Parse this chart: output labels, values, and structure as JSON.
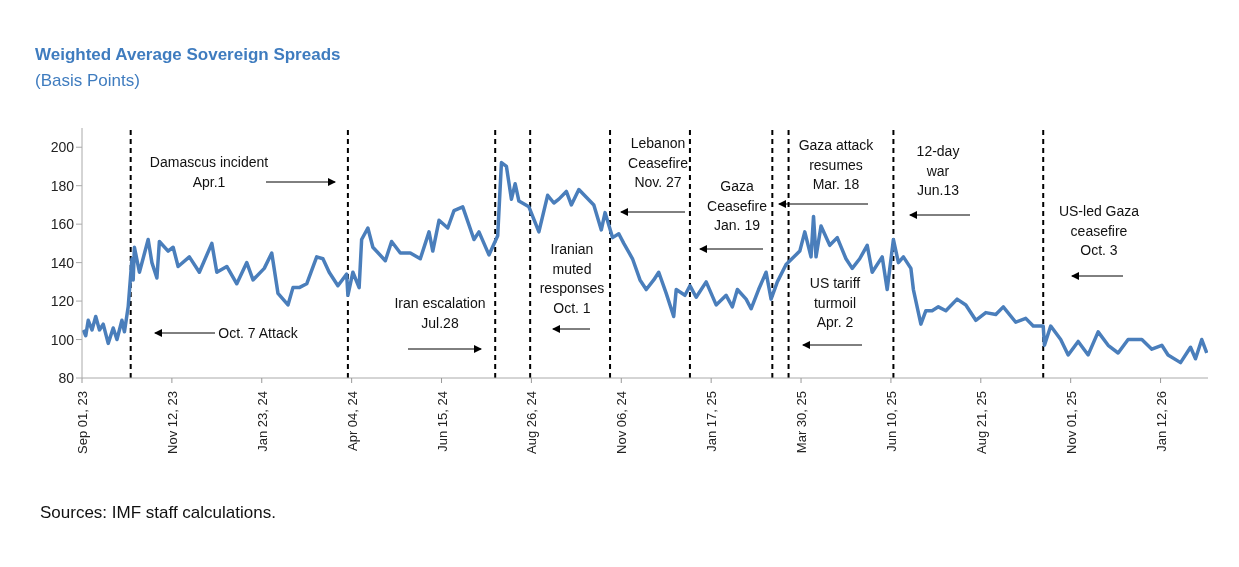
{
  "chart_data": {
    "type": "line",
    "title": "Weighted Average Sovereign Spreads",
    "subtitle": "(Basis Points)",
    "x": [
      "2023-09-02",
      "2023-09-04",
      "2023-09-06",
      "2023-09-09",
      "2023-09-12",
      "2023-09-15",
      "2023-09-18",
      "2023-09-22",
      "2023-09-26",
      "2023-09-29",
      "2023-10-03",
      "2023-10-05",
      "2023-10-08",
      "2023-10-11",
      "2023-10-12",
      "2023-10-13",
      "2023-10-17",
      "2023-10-24",
      "2023-10-27",
      "2023-10-31",
      "2023-11-02",
      "2023-11-09",
      "2023-11-13",
      "2023-11-17",
      "2023-11-26",
      "2023-12-04",
      "2023-12-14",
      "2023-12-18",
      "2023-12-26",
      "2024-01-03",
      "2024-01-11",
      "2024-01-16",
      "2024-01-25",
      "2024-01-31",
      "2024-02-05",
      "2024-02-13",
      "2024-02-17",
      "2024-02-22",
      "2024-02-28",
      "2024-03-07",
      "2024-03-12",
      "2024-03-17",
      "2024-03-24",
      "2024-03-31",
      "2024-04-01",
      "2024-04-05",
      "2024-04-10",
      "2024-04-12",
      "2024-04-17",
      "2024-04-21",
      "2024-05-01",
      "2024-05-06",
      "2024-05-13",
      "2024-05-21",
      "2024-05-29",
      "2024-06-05",
      "2024-06-08",
      "2024-06-13",
      "2024-06-20",
      "2024-06-25",
      "2024-07-02",
      "2024-07-11",
      "2024-07-15",
      "2024-07-23",
      "2024-07-30",
      "2024-08-02",
      "2024-08-06",
      "2024-08-10",
      "2024-08-13",
      "2024-08-16",
      "2024-08-24",
      "2024-09-01",
      "2024-09-08",
      "2024-09-13",
      "2024-09-17",
      "2024-09-23",
      "2024-09-27",
      "2024-10-03",
      "2024-10-09",
      "2024-10-15",
      "2024-10-21",
      "2024-10-24",
      "2024-10-30",
      "2024-11-04",
      "2024-11-08",
      "2024-11-15",
      "2024-11-21",
      "2024-11-26",
      "2024-12-02",
      "2024-12-06",
      "2024-12-12",
      "2024-12-18",
      "2024-12-20",
      "2024-12-27",
      "2024-12-31",
      "2025-01-05",
      "2025-01-13",
      "2025-01-21",
      "2025-01-29",
      "2025-02-03",
      "2025-02-07",
      "2025-02-14",
      "2025-02-18",
      "2025-02-24",
      "2025-03-02",
      "2025-03-06",
      "2025-03-11",
      "2025-03-18",
      "2025-03-29",
      "2025-04-02",
      "2025-04-07",
      "2025-04-09",
      "2025-04-11",
      "2025-04-15",
      "2025-04-22",
      "2025-04-28",
      "2025-05-05",
      "2025-05-10",
      "2025-05-16",
      "2025-05-22",
      "2025-05-26",
      "2025-06-03",
      "2025-06-07",
      "2025-06-12",
      "2025-06-16",
      "2025-06-20",
      "2025-06-26",
      "2025-06-28",
      "2025-07-04",
      "2025-07-08",
      "2025-07-13",
      "2025-07-18",
      "2025-07-24",
      "2025-08-02",
      "2025-08-09",
      "2025-08-17",
      "2025-08-25",
      "2025-09-02",
      "2025-09-08",
      "2025-09-18",
      "2025-09-26",
      "2025-10-02",
      "2025-10-10",
      "2025-10-11",
      "2025-10-16",
      "2025-10-24",
      "2025-10-30",
      "2025-11-07",
      "2025-11-15",
      "2025-11-23",
      "2025-12-01",
      "2025-12-09",
      "2025-12-17",
      "2025-12-28",
      "2026-01-05",
      "2026-01-13",
      "2026-01-18",
      "2026-01-28",
      "2026-02-05",
      "2026-02-09",
      "2026-02-14",
      "2026-02-18"
    ],
    "series": [
      {
        "color": "#4a7ebb",
        "values": [
          105,
          102,
          110,
          105,
          112,
          105,
          108,
          98,
          106,
          100,
          110,
          104,
          117,
          142,
          131,
          148,
          135,
          152,
          140,
          132,
          151,
          146,
          148,
          138,
          143,
          135,
          150,
          135,
          138,
          129,
          140,
          131,
          137,
          145,
          124,
          118,
          127,
          127,
          129,
          143,
          142,
          135,
          128,
          134,
          123,
          135,
          127,
          152,
          158,
          148,
          141,
          151,
          145,
          145,
          142,
          156,
          146,
          162,
          158,
          167,
          169,
          152,
          156,
          144,
          154,
          192,
          190,
          173,
          181,
          172,
          169,
          156,
          175,
          171,
          173,
          177,
          170,
          178,
          174,
          170,
          157,
          166,
          153,
          155,
          150,
          142,
          131,
          126,
          131,
          135,
          124,
          112,
          126,
          123,
          128,
          122,
          130,
          118,
          123,
          117,
          126,
          121,
          116,
          126,
          135,
          121,
          130,
          139,
          146,
          156,
          143,
          164,
          143,
          159,
          149,
          153,
          142,
          137,
          142,
          149,
          135,
          143,
          126,
          152,
          140,
          143,
          137,
          126,
          108,
          115,
          115,
          117,
          115,
          121,
          118,
          110,
          114,
          113,
          117,
          109,
          111,
          107,
          107,
          97,
          107,
          100,
          92,
          99,
          92,
          104,
          97,
          93,
          100,
          100,
          95,
          97,
          92,
          88,
          96,
          90,
          100,
          93
        ]
      }
    ],
    "xlim": [
      "2023-09-01",
      "2026-02-19"
    ],
    "xticks": [
      {
        "value": "2023-09-01",
        "label": "Sep 01, 23"
      },
      {
        "value": "2023-11-12",
        "label": "Nov 12, 23"
      },
      {
        "value": "2024-01-23",
        "label": "Jan 23, 24"
      },
      {
        "value": "2024-04-04",
        "label": "Apr 04, 24"
      },
      {
        "value": "2024-06-15",
        "label": "Jun 15, 24"
      },
      {
        "value": "2024-08-26",
        "label": "Aug 26, 24"
      },
      {
        "value": "2024-11-06",
        "label": "Nov 06, 24"
      },
      {
        "value": "2025-01-17",
        "label": "Jan 17, 25"
      },
      {
        "value": "2025-03-30",
        "label": "Mar 30, 25"
      },
      {
        "value": "2025-06-10",
        "label": "Jun 10, 25"
      },
      {
        "value": "2025-08-21",
        "label": "Aug 21, 25"
      },
      {
        "value": "2025-11-01",
        "label": "Nov 01, 25"
      },
      {
        "value": "2026-01-12",
        "label": "Jan 12, 26"
      }
    ],
    "ylim": [
      80,
      210
    ],
    "yticks": [
      80,
      100,
      120,
      140,
      160,
      180,
      200
    ],
    "ref_lines": [
      {
        "axis": "x",
        "value": "2023-10-10",
        "color": "#000000",
        "line_style": "dashed"
      },
      {
        "axis": "x",
        "value": "2024-04-01",
        "color": "#000000",
        "line_style": "dashed"
      },
      {
        "axis": "x",
        "value": "2024-07-28",
        "label": "Iran escalation\nJul.28",
        "color": "#000000",
        "line_style": "dashed"
      },
      {
        "axis": "x",
        "value": "2024-08-25",
        "label": "Iranian\nmuted\nresponses\nOct. 1",
        "color": "#000000",
        "line_style": "dashed"
      },
      {
        "axis": "x",
        "value": "2024-10-28",
        "label": "Lebanon\nCeasefire\nNov. 27",
        "color": "#000000",
        "line_style": "dashed"
      },
      {
        "axis": "x",
        "value": "2024-12-31",
        "label": "Gaza\nCeasefire\nJan. 19",
        "color": "#000000",
        "line_style": "dashed"
      },
      {
        "axis": "x",
        "value": "2025-03-07",
        "label": "Gaza attack\nresumes\nMar. 18",
        "color": "#000000",
        "line_style": "dashed"
      },
      {
        "axis": "x",
        "value": "2025-03-20",
        "label": "US tariff\nturmoil\nApr. 2",
        "color": "#000000",
        "line_style": "dashed"
      },
      {
        "axis": "x",
        "value": "2025-06-12",
        "label": "12-day\nwar\nJun.13",
        "color": "#000000",
        "line_style": "dashed"
      },
      {
        "axis": "x",
        "value": "2025-10-10",
        "label": "US-led Gaza\nceasefire\nOct. 3",
        "color": "#000000",
        "line_style": "dashed"
      }
    ],
    "annotations": [
      "Oct. 7 Attack",
      "Damascus incident\nApr.1",
      "Sources: IMF staff calculations."
    ]
  }
}
